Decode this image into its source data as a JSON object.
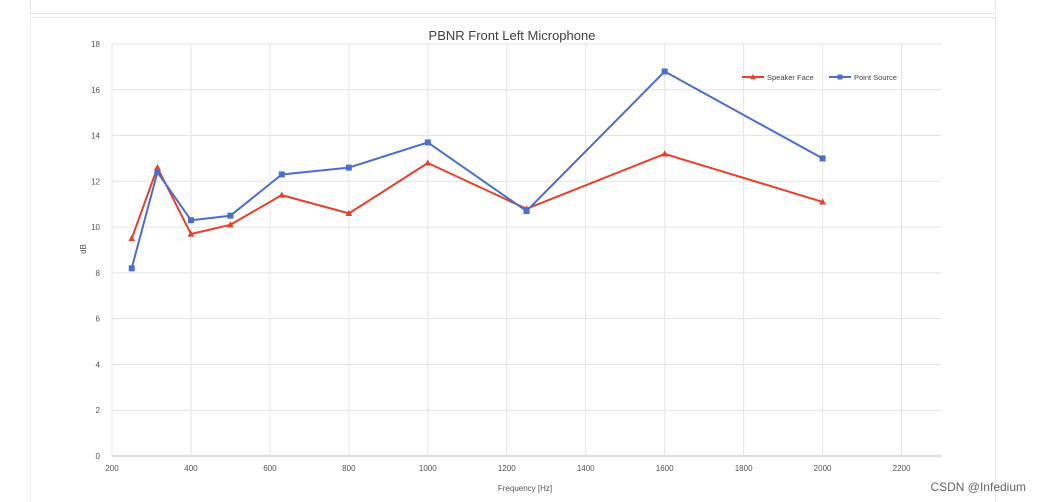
{
  "watermark": "CSDN @Infedium",
  "chart_data": {
    "type": "line",
    "title": "PBNR Front Left Microphone",
    "xlabel": "Frequency [Hz]",
    "ylabel": "dB",
    "xlim": [
      200,
      2300
    ],
    "ylim": [
      0,
      18
    ],
    "xticks": [
      200,
      400,
      600,
      800,
      1000,
      1200,
      1400,
      1600,
      1800,
      2000,
      2200
    ],
    "yticks": [
      0,
      2,
      4,
      6,
      8,
      10,
      12,
      14,
      16,
      18
    ],
    "grid": true,
    "legend_position": "top-right",
    "x": [
      250,
      315,
      400,
      500,
      630,
      800,
      1000,
      1250,
      1600,
      2000
    ],
    "series": [
      {
        "name": "Speaker Face",
        "color": "#e8402a",
        "marker": "triangle",
        "values": [
          9.5,
          12.6,
          9.7,
          10.1,
          11.4,
          10.6,
          12.8,
          10.8,
          13.2,
          11.1
        ]
      },
      {
        "name": "Point Source",
        "color": "#4a6ed0",
        "marker": "square",
        "values": [
          8.2,
          12.4,
          10.3,
          10.5,
          12.3,
          12.6,
          13.7,
          10.7,
          16.8,
          13.0
        ]
      }
    ]
  }
}
